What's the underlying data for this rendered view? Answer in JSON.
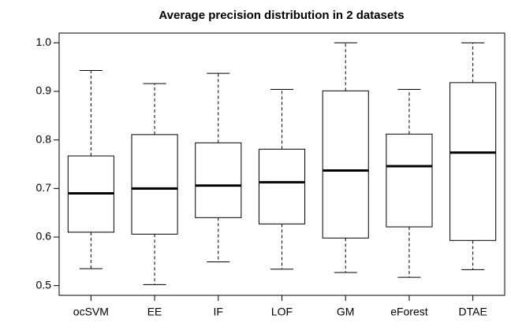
{
  "chart_data": {
    "type": "box",
    "title": "Average precision distribution in 2  datasets",
    "categories": [
      "ocSVM",
      "EE",
      "IF",
      "LOF",
      "GM",
      "eForest",
      "DTAE"
    ],
    "min": [
      0.535,
      0.502,
      0.549,
      0.534,
      0.527,
      0.517,
      0.533
    ],
    "q1": [
      0.61,
      0.606,
      0.64,
      0.627,
      0.598,
      0.621,
      0.593
    ],
    "median": [
      0.69,
      0.7,
      0.706,
      0.713,
      0.737,
      0.746,
      0.774
    ],
    "q3": [
      0.767,
      0.811,
      0.794,
      0.781,
      0.901,
      0.812,
      0.918
    ],
    "max": [
      0.943,
      0.916,
      0.937,
      0.904,
      1.0,
      0.904,
      1.0
    ],
    "color": "#000000",
    "ylim": [
      0.48,
      1.02
    ],
    "yticks": [
      0.5,
      0.6,
      0.7,
      0.8,
      0.9,
      {
        "value": 1.0,
        "label": "1.0"
      }
    ]
  }
}
